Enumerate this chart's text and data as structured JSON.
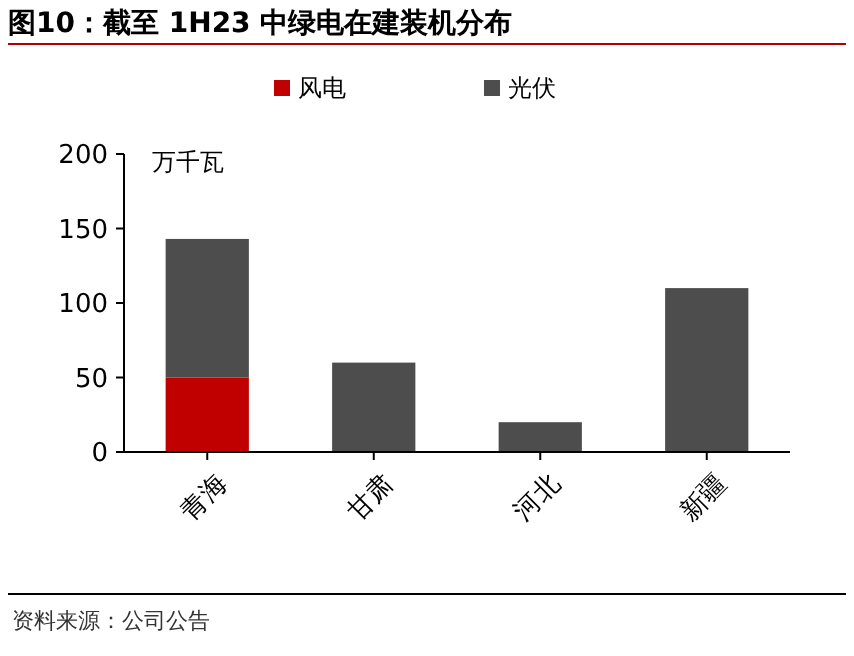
{
  "chart_data": {
    "type": "bar",
    "title": "图10：截至 1H23 中绿电在建装机分布",
    "ylabel": "万千瓦",
    "categories": [
      "青海",
      "甘肃",
      "河北",
      "新疆"
    ],
    "series": [
      {
        "name": "风电",
        "color": "#c00000",
        "values": [
          50,
          0,
          0,
          0
        ]
      },
      {
        "name": "光伏",
        "color": "#4d4d4d",
        "values": [
          93,
          60,
          20,
          110
        ]
      }
    ],
    "stacked": true,
    "ylim": [
      0,
      200
    ],
    "yticks": [
      0,
      50,
      100,
      150,
      200
    ],
    "grid": false,
    "legend": "top",
    "annotations": [
      "资料来源：公司公告"
    ]
  }
}
